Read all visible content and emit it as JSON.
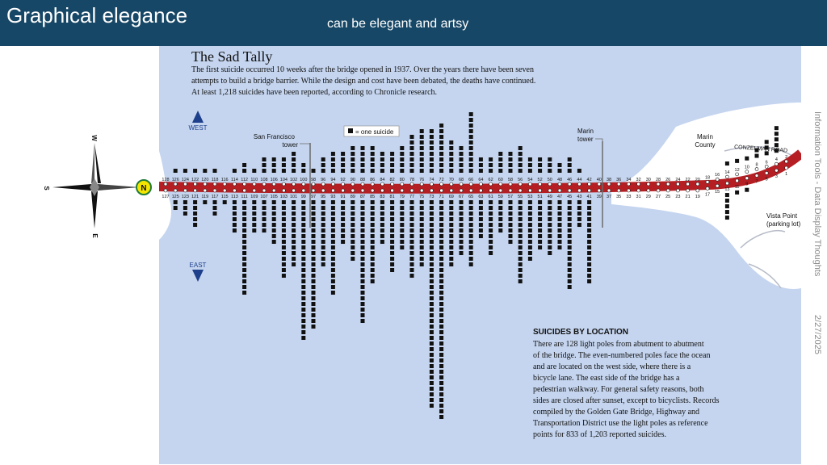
{
  "slide": {
    "title": "Graphical elegance",
    "subtitle": "can be elegant and artsy",
    "side_text": "Information Tools - Data Display Thoughts",
    "date": "2/27/2025"
  },
  "compass": {
    "w": "W",
    "s": "S",
    "e": "E",
    "n": "N"
  },
  "figure": {
    "heading": "The Sad Tally",
    "intro": [
      "The first suicide occurred 10 weeks after the bridge opened in 1937. Over the years there have been seven",
      "attempts to build a bridge barrier. While the design and cost have been debated, the deaths have continued.",
      "At least 1,218 suicides have been reported, according to Chronicle research."
    ],
    "west_label": "WEST",
    "east_label": "EAST",
    "legend_label": "= one suicide",
    "sf_tower": [
      "San Francisco",
      "tower"
    ],
    "marin_tower": [
      "Marin",
      "tower"
    ],
    "marin_county": [
      "Marin",
      "County"
    ],
    "road": "CONZELMAN ROAD",
    "vista_point": [
      "Vista Point",
      "(parking lot)"
    ],
    "location_heading": "SUICIDES BY LOCATION",
    "location_text": [
      "There are 128 light poles from abutment to abutment",
      "of the bridge. The even-numbered poles face the ocean",
      "and are located on the west side, where there is a",
      "bicycle lane. The east side of the bridge has a",
      "pedestrian walkway. For general safety reasons, both",
      "sides are closed after sunset, except to bicyclists. Records",
      "compiled by the Golden Gate Bridge, Highway and",
      "Transportation District  use the light poles as reference",
      "points for 833 of 1,203 reported suicides."
    ],
    "colors": {
      "water": "#c5d5ef",
      "land": "#ffffff",
      "road": "#b51f24",
      "square": "#111111",
      "arrow": "#1d3f8c"
    }
  },
  "chart_data": {
    "type": "bar",
    "unit": "one suicide",
    "even_poles": {
      "labels": [
        "128",
        "126",
        "124",
        "122",
        "120",
        "118",
        "116",
        "114",
        "112",
        "110",
        "108",
        "106",
        "104",
        "102",
        "100",
        "98",
        "96",
        "94",
        "92",
        "90",
        "88",
        "86",
        "84",
        "82",
        "80",
        "78",
        "76",
        "74",
        "72",
        "70",
        "68",
        "66",
        "64",
        "62",
        "60",
        "58",
        "56",
        "54",
        "52",
        "50",
        "48",
        "46",
        "44",
        "42",
        "40",
        "38",
        "36",
        "34",
        "32",
        "30",
        "28",
        "26",
        "24",
        "22",
        "20",
        "18",
        "16",
        "14",
        "12",
        "10",
        "8",
        "6",
        "4",
        "2"
      ],
      "values": [
        0,
        1,
        1,
        1,
        1,
        1,
        0,
        1,
        2,
        1,
        3,
        3,
        3,
        4,
        2,
        1,
        3,
        4,
        4,
        5,
        5,
        5,
        4,
        4,
        5,
        7,
        8,
        8,
        9,
        6,
        5,
        11,
        3,
        3,
        4,
        4,
        5,
        3,
        3,
        3,
        2,
        3,
        1,
        0,
        0,
        0,
        0,
        0,
        0,
        0,
        0,
        0,
        0,
        0,
        0,
        0,
        0,
        1,
        1,
        1,
        2,
        3,
        5,
        0
      ]
    },
    "odd_poles": {
      "labels": [
        "127",
        "125",
        "123",
        "121",
        "119",
        "117",
        "115",
        "113",
        "111",
        "109",
        "107",
        "105",
        "103",
        "101",
        "99",
        "97",
        "95",
        "93",
        "91",
        "89",
        "87",
        "85",
        "83",
        "81",
        "79",
        "77",
        "75",
        "73",
        "71",
        "69",
        "67",
        "65",
        "63",
        "61",
        "59",
        "57",
        "55",
        "53",
        "51",
        "49",
        "47",
        "45",
        "43",
        "41",
        "39",
        "37",
        "35",
        "33",
        "31",
        "29",
        "27",
        "25",
        "23",
        "21",
        "19",
        "17",
        "15",
        "13",
        "11",
        "9",
        "7",
        "5",
        "3",
        "1"
      ],
      "values": [
        0,
        2,
        3,
        5,
        1,
        3,
        1,
        6,
        17,
        6,
        6,
        8,
        14,
        12,
        25,
        23,
        12,
        17,
        8,
        11,
        22,
        15,
        8,
        13,
        9,
        14,
        12,
        37,
        39,
        12,
        10,
        12,
        7,
        10,
        6,
        8,
        15,
        11,
        9,
        10,
        9,
        16,
        5,
        15,
        0,
        0,
        0,
        0,
        0,
        0,
        0,
        0,
        0,
        0,
        0,
        0,
        0,
        5,
        1,
        1,
        0,
        0,
        0,
        0
      ]
    }
  }
}
